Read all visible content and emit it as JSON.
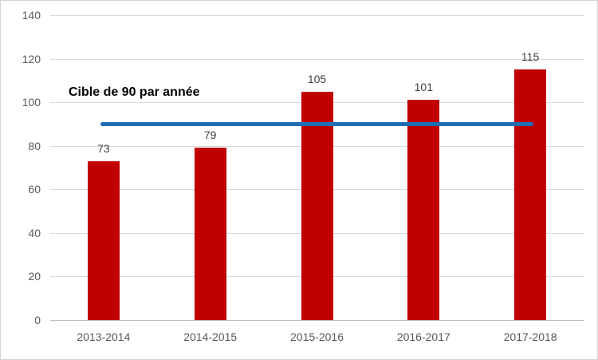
{
  "chart_data": {
    "type": "bar",
    "title": "",
    "xlabel": "",
    "ylabel": "",
    "categories": [
      "2013-2014",
      "2014-2015",
      "2015-2016",
      "2016-2017",
      "2017-2018"
    ],
    "values": [
      73,
      79,
      105,
      101,
      115
    ],
    "ylim": [
      0,
      140
    ],
    "yticks": [
      0,
      20,
      40,
      60,
      80,
      100,
      120,
      140
    ],
    "grid": true,
    "legend": "none",
    "bar_color": "#c00000",
    "axis_text_color": "#595959",
    "value_label_color": "#404040",
    "gridline_color": "#d9d9d9",
    "target_line": {
      "value": 90,
      "color": "#1f6fb4",
      "label": "Cible de 90 par année"
    }
  }
}
